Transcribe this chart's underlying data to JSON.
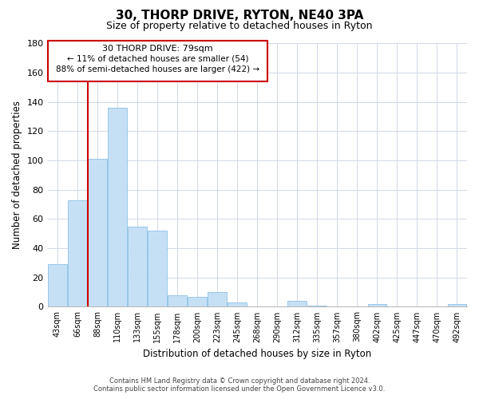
{
  "title": "30, THORP DRIVE, RYTON, NE40 3PA",
  "subtitle": "Size of property relative to detached houses in Ryton",
  "xlabel": "Distribution of detached houses by size in Ryton",
  "ylabel": "Number of detached properties",
  "footer_line1": "Contains HM Land Registry data © Crown copyright and database right 2024.",
  "footer_line2": "Contains public sector information licensed under the Open Government Licence v3.0.",
  "bar_labels": [
    "43sqm",
    "66sqm",
    "88sqm",
    "110sqm",
    "133sqm",
    "155sqm",
    "178sqm",
    "200sqm",
    "223sqm",
    "245sqm",
    "268sqm",
    "290sqm",
    "312sqm",
    "335sqm",
    "357sqm",
    "380sqm",
    "402sqm",
    "425sqm",
    "447sqm",
    "470sqm",
    "492sqm"
  ],
  "bar_values": [
    29,
    73,
    101,
    136,
    55,
    52,
    8,
    7,
    10,
    3,
    0,
    0,
    4,
    1,
    0,
    0,
    2,
    0,
    0,
    0,
    2
  ],
  "bar_color": "#c5e0f5",
  "bar_edge_color": "#7ab8e0",
  "grid_color": "#d0d8e8",
  "background_color": "#ffffff",
  "property_line_color": "#cc0000",
  "property_line_bin": 1,
  "ylim": [
    0,
    180
  ],
  "yticks": [
    0,
    20,
    40,
    60,
    80,
    100,
    120,
    140,
    160,
    180
  ],
  "annotation_title": "30 THORP DRIVE: 79sqm",
  "annotation_line1": "← 11% of detached houses are smaller (54)",
  "annotation_line2": "88% of semi-detached houses are larger (422) →",
  "box_facecolor": "#ffffff",
  "box_edgecolor": "#cc0000",
  "n_bars": 21
}
